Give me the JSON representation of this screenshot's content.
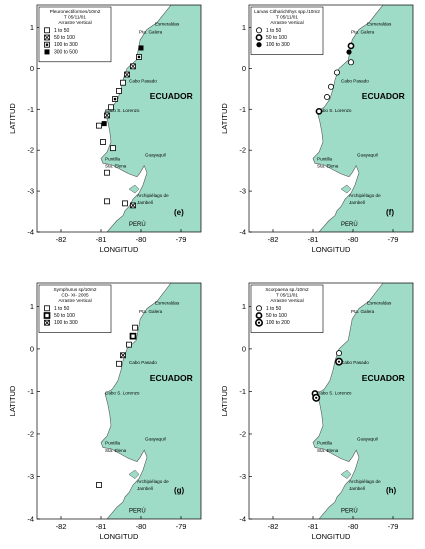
{
  "colors": {
    "land": "#9fdcc8",
    "land_edge": "#555555",
    "frame": "#222222",
    "marker": "#000000"
  },
  "axes": {
    "xlabel": "LONGITUD",
    "ylabel": "LATITUD",
    "x_ticks": [
      "-82",
      "-81",
      "-80",
      "-79"
    ],
    "y_ticks": [
      "1",
      "0",
      "-1",
      "-2",
      "-3",
      "-4"
    ],
    "x_values": [
      -82,
      -81,
      -80,
      -79
    ],
    "y_values": [
      1,
      0,
      -1,
      -2,
      -3,
      -4
    ],
    "xlim": [
      -82.6,
      -78.5
    ],
    "ylim": [
      -4,
      1.55
    ]
  },
  "places": [
    {
      "name": "Esmeraldas",
      "lon": -79.65,
      "lat": 1.05
    },
    {
      "name": "Pta. Galera",
      "lon": -80.05,
      "lat": 0.85
    },
    {
      "name": "Cabo Pasado",
      "lon": -80.3,
      "lat": -0.35
    },
    {
      "name": "Cabo S. Lorenzo",
      "lon": -80.9,
      "lat": -1.07
    },
    {
      "name": "Guayaquil",
      "lon": -79.9,
      "lat": -2.15
    },
    {
      "name": "Puntilla",
      "lon": -80.9,
      "lat": -2.25
    },
    {
      "name": "Sta. Elena",
      "lon": -80.9,
      "lat": -2.42
    },
    {
      "name": "Archipiélago de",
      "lon": -80.1,
      "lat": -3.15
    },
    {
      "name": "Jambelí",
      "lon": -80.1,
      "lat": -3.32
    }
  ],
  "country_label": "ECUADOR",
  "country_label_pos": {
    "lon": -79.78,
    "lat": -0.75
  },
  "peru_label": "PERÚ",
  "peru_label_pos": {
    "lon": -80.3,
    "lat": -3.85
  },
  "panels": [
    {
      "id": "e",
      "panel_label": "(e)",
      "legend_title": [
        "Pleuronectiformes/10m2",
        "T 05/11/01",
        "Arrastre Vertical"
      ],
      "legend_classes": [
        {
          "label": "1 to 50",
          "symbol": "square-open"
        },
        {
          "label": "50 to 100",
          "symbol": "square-x"
        },
        {
          "label": "100 to 300",
          "symbol": "square-dot"
        },
        {
          "label": "300 to 500",
          "symbol": "square-filled"
        }
      ],
      "stations": [
        {
          "lon": -80.0,
          "lat": 0.5,
          "cls": 3
        },
        {
          "lon": -80.05,
          "lat": 0.28,
          "cls": 2
        },
        {
          "lon": -80.2,
          "lat": 0.05,
          "cls": 1
        },
        {
          "lon": -80.35,
          "lat": -0.15,
          "cls": 1
        },
        {
          "lon": -80.45,
          "lat": -0.35,
          "cls": 0
        },
        {
          "lon": -80.55,
          "lat": -0.55,
          "cls": 0
        },
        {
          "lon": -80.65,
          "lat": -0.75,
          "cls": 2
        },
        {
          "lon": -80.75,
          "lat": -0.95,
          "cls": 0
        },
        {
          "lon": -80.85,
          "lat": -1.15,
          "cls": 1
        },
        {
          "lon": -80.92,
          "lat": -1.35,
          "cls": 3
        },
        {
          "lon": -81.05,
          "lat": -1.4,
          "cls": 0
        },
        {
          "lon": -80.95,
          "lat": -1.8,
          "cls": 0
        },
        {
          "lon": -80.7,
          "lat": -1.95,
          "cls": 0
        },
        {
          "lon": -80.85,
          "lat": -2.55,
          "cls": 0
        },
        {
          "lon": -80.85,
          "lat": -3.25,
          "cls": 0
        },
        {
          "lon": -80.4,
          "lat": -3.3,
          "cls": 0
        },
        {
          "lon": -80.2,
          "lat": -3.35,
          "cls": 1
        }
      ]
    },
    {
      "id": "f",
      "panel_label": "(f)",
      "legend_title": [
        "Larvas Citharichthys spp./10m2",
        "T 05/11/01",
        "Arrastre Vertical"
      ],
      "legend_classes": [
        {
          "label": "1 to 50",
          "symbol": "circle-open"
        },
        {
          "label": "50 to 100",
          "symbol": "circle-thick"
        },
        {
          "label": "100 to 300",
          "symbol": "circle-filled"
        }
      ],
      "stations": [
        {
          "lon": -80.05,
          "lat": 0.55,
          "cls": 1
        },
        {
          "lon": -80.1,
          "lat": 0.4,
          "cls": 2
        },
        {
          "lon": -80.05,
          "lat": 0.15,
          "cls": 0
        },
        {
          "lon": -80.4,
          "lat": -0.1,
          "cls": 0
        },
        {
          "lon": -80.55,
          "lat": -0.45,
          "cls": 0
        },
        {
          "lon": -80.65,
          "lat": -0.7,
          "cls": 0
        },
        {
          "lon": -80.85,
          "lat": -1.05,
          "cls": 1
        }
      ]
    },
    {
      "id": "g",
      "panel_label": "(g)",
      "legend_title": [
        "Symphurus sp/10m2",
        "CD- XI- 2005",
        "Arrastre Vertical"
      ],
      "legend_classes": [
        {
          "label": "1 to 50",
          "symbol": "square-open"
        },
        {
          "label": "50 to 100",
          "symbol": "square-thick"
        },
        {
          "label": "100 to 300",
          "symbol": "square-x"
        }
      ],
      "stations": [
        {
          "lon": -80.15,
          "lat": 0.5,
          "cls": 0
        },
        {
          "lon": -80.2,
          "lat": 0.3,
          "cls": 1
        },
        {
          "lon": -80.3,
          "lat": 0.1,
          "cls": 0
        },
        {
          "lon": -80.45,
          "lat": -0.15,
          "cls": 2
        },
        {
          "lon": -80.55,
          "lat": -0.35,
          "cls": 0
        },
        {
          "lon": -81.05,
          "lat": -3.2,
          "cls": 0
        }
      ]
    },
    {
      "id": "h",
      "panel_label": "(h)",
      "legend_title": [
        "Scorpaena sp./10m2",
        "T 05/11/01",
        "Arrastre Vertical"
      ],
      "legend_classes": [
        {
          "label": "1 to 50",
          "symbol": "circle-open"
        },
        {
          "label": "50 to 100",
          "symbol": "circle-thick"
        },
        {
          "label": "100 to 200",
          "symbol": "circle-double"
        }
      ],
      "stations": [
        {
          "lon": -80.35,
          "lat": -0.3,
          "cls": 2
        },
        {
          "lon": -80.35,
          "lat": -0.1,
          "cls": 0
        },
        {
          "lon": -80.95,
          "lat": -1.05,
          "cls": 1
        },
        {
          "lon": -80.92,
          "lat": -1.15,
          "cls": 2
        }
      ]
    }
  ]
}
